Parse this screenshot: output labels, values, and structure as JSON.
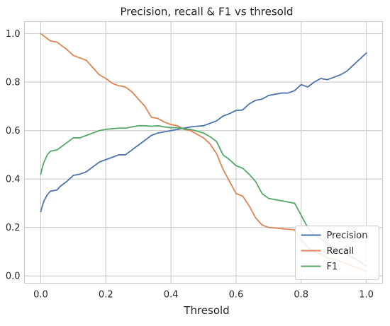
{
  "chart_data": {
    "type": "line",
    "title": "Precision, recall & F1 vs thresold",
    "xlabel": "Thresold",
    "ylabel": "",
    "xlim": [
      -0.05,
      1.05
    ],
    "ylim": [
      -0.03,
      1.05
    ],
    "xticks": [
      {
        "value": 0.0,
        "label": "0.0"
      },
      {
        "value": 0.2,
        "label": "0.2"
      },
      {
        "value": 0.4,
        "label": "0.4"
      },
      {
        "value": 0.6,
        "label": "0.6"
      },
      {
        "value": 0.8,
        "label": "0.8"
      },
      {
        "value": 1.0,
        "label": "1.0"
      }
    ],
    "yticks": [
      {
        "value": 0.0,
        "label": "0.0"
      },
      {
        "value": 0.2,
        "label": "0.2"
      },
      {
        "value": 0.4,
        "label": "0.4"
      },
      {
        "value": 0.6,
        "label": "0.6"
      },
      {
        "value": 0.8,
        "label": "0.8"
      },
      {
        "value": 1.0,
        "label": "1.0"
      }
    ],
    "grid": true,
    "legend_position": "bottom-right",
    "series": [
      {
        "name": "Precision",
        "color": "#4c72b0",
        "x": [
          0.0,
          0.005,
          0.01,
          0.02,
          0.03,
          0.05,
          0.06,
          0.08,
          0.1,
          0.12,
          0.14,
          0.16,
          0.18,
          0.2,
          0.22,
          0.24,
          0.26,
          0.28,
          0.3,
          0.32,
          0.34,
          0.36,
          0.38,
          0.4,
          0.42,
          0.44,
          0.46,
          0.48,
          0.5,
          0.52,
          0.54,
          0.56,
          0.58,
          0.6,
          0.62,
          0.64,
          0.66,
          0.68,
          0.7,
          0.72,
          0.74,
          0.76,
          0.78,
          0.8,
          0.82,
          0.84,
          0.86,
          0.88,
          0.9,
          0.92,
          0.94,
          0.96,
          0.98,
          1.0
        ],
        "y": [
          0.265,
          0.29,
          0.31,
          0.335,
          0.35,
          0.355,
          0.37,
          0.39,
          0.415,
          0.42,
          0.43,
          0.45,
          0.47,
          0.48,
          0.49,
          0.5,
          0.5,
          0.52,
          0.54,
          0.56,
          0.58,
          0.59,
          0.595,
          0.6,
          0.605,
          0.61,
          0.615,
          0.618,
          0.62,
          0.63,
          0.64,
          0.66,
          0.67,
          0.683,
          0.685,
          0.71,
          0.725,
          0.73,
          0.745,
          0.75,
          0.755,
          0.755,
          0.765,
          0.79,
          0.78,
          0.8,
          0.815,
          0.81,
          0.82,
          0.83,
          0.845,
          0.87,
          0.895,
          0.92
        ]
      },
      {
        "name": "Recall",
        "color": "#dd8452",
        "x": [
          0.0,
          0.005,
          0.01,
          0.02,
          0.03,
          0.05,
          0.06,
          0.08,
          0.1,
          0.12,
          0.14,
          0.16,
          0.18,
          0.2,
          0.22,
          0.24,
          0.26,
          0.28,
          0.3,
          0.32,
          0.34,
          0.36,
          0.38,
          0.4,
          0.42,
          0.44,
          0.46,
          0.48,
          0.5,
          0.52,
          0.54,
          0.56,
          0.58,
          0.6,
          0.62,
          0.64,
          0.66,
          0.68,
          0.7,
          0.72,
          0.74,
          0.76,
          0.78,
          0.8,
          0.82,
          0.84,
          0.86,
          0.88,
          0.9,
          0.92,
          0.94,
          0.96,
          0.98,
          1.0
        ],
        "y": [
          1.0,
          0.995,
          0.99,
          0.98,
          0.97,
          0.965,
          0.955,
          0.935,
          0.91,
          0.9,
          0.89,
          0.86,
          0.83,
          0.815,
          0.795,
          0.785,
          0.78,
          0.76,
          0.73,
          0.7,
          0.655,
          0.65,
          0.635,
          0.625,
          0.62,
          0.605,
          0.6,
          0.585,
          0.57,
          0.545,
          0.505,
          0.44,
          0.39,
          0.34,
          0.33,
          0.29,
          0.24,
          0.21,
          0.2,
          0.198,
          0.195,
          0.193,
          0.19,
          0.15,
          0.12,
          0.1,
          0.09,
          0.075,
          0.07,
          0.06,
          0.05,
          0.04,
          0.03,
          0.02
        ]
      },
      {
        "name": "F1",
        "color": "#55a868",
        "x": [
          0.0,
          0.005,
          0.01,
          0.02,
          0.03,
          0.05,
          0.06,
          0.08,
          0.1,
          0.12,
          0.14,
          0.16,
          0.18,
          0.2,
          0.22,
          0.24,
          0.26,
          0.28,
          0.3,
          0.32,
          0.34,
          0.36,
          0.38,
          0.4,
          0.42,
          0.44,
          0.46,
          0.48,
          0.5,
          0.52,
          0.54,
          0.56,
          0.58,
          0.6,
          0.62,
          0.64,
          0.66,
          0.68,
          0.7,
          0.72,
          0.74,
          0.76,
          0.78,
          0.8,
          0.82,
          0.84,
          0.86,
          0.88,
          0.9,
          0.92,
          0.94,
          0.96,
          0.98,
          1.0
        ],
        "y": [
          0.42,
          0.45,
          0.47,
          0.5,
          0.515,
          0.52,
          0.53,
          0.55,
          0.57,
          0.57,
          0.58,
          0.59,
          0.6,
          0.605,
          0.608,
          0.61,
          0.61,
          0.615,
          0.62,
          0.62,
          0.618,
          0.62,
          0.615,
          0.612,
          0.612,
          0.607,
          0.605,
          0.598,
          0.59,
          0.575,
          0.555,
          0.5,
          0.48,
          0.455,
          0.445,
          0.42,
          0.39,
          0.34,
          0.32,
          0.315,
          0.31,
          0.305,
          0.3,
          0.25,
          0.2,
          0.17,
          0.155,
          0.135,
          0.12,
          0.105,
          0.09,
          0.075,
          0.06,
          0.04
        ]
      }
    ]
  }
}
